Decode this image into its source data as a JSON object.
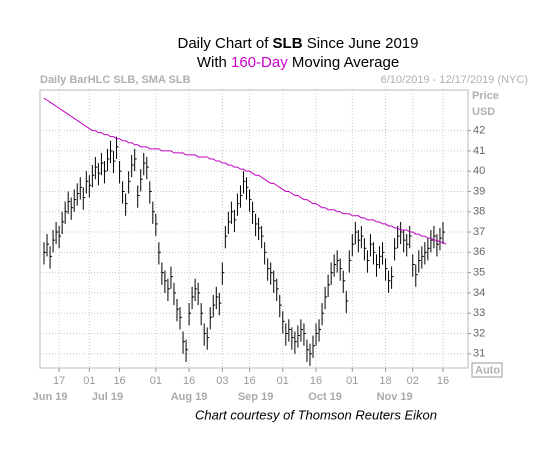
{
  "chart_data": {
    "type": "hlc",
    "title": {
      "prefix": "Daily Chart of",
      "ticker": "SLB",
      "suffix": "Since June 2019"
    },
    "subtitle": {
      "prefix": "With",
      "highlight": "160-Day",
      "suffix": "Moving Average",
      "highlight_color": "#cc00cc"
    },
    "header_left": "Daily BarHLC SLB, SMA SLB",
    "header_right": "6/10/2019 - 12/17/2019 (NYC)",
    "y_axis_labels": [
      "Price",
      "USD"
    ],
    "scale_button": "Auto",
    "footer": "Chart courtesy of Thomson Reuters Eikon",
    "grid": true,
    "ylim": [
      30.3,
      44
    ],
    "yticks": [
      31,
      32,
      33,
      34,
      35,
      36,
      37,
      38,
      39,
      40,
      41,
      42
    ],
    "xlim": [
      0,
      133
    ],
    "xticks": [
      {
        "value": 5,
        "label": "17"
      },
      {
        "value": 15,
        "label": "01"
      },
      {
        "value": 25,
        "label": "16"
      },
      {
        "value": 37,
        "label": "01"
      },
      {
        "value": 48,
        "label": "16"
      },
      {
        "value": 59,
        "label": "03"
      },
      {
        "value": 68,
        "label": "16"
      },
      {
        "value": 79,
        "label": "01"
      },
      {
        "value": 90,
        "label": "16"
      },
      {
        "value": 102,
        "label": "01"
      },
      {
        "value": 113,
        "label": "18"
      },
      {
        "value": 122,
        "label": "02"
      },
      {
        "value": 132,
        "label": "16"
      }
    ],
    "month_labels": [
      {
        "value": 2,
        "label": "Jun 19"
      },
      {
        "value": 21,
        "label": "Jul 19"
      },
      {
        "value": 48,
        "label": "Aug 19"
      },
      {
        "value": 70,
        "label": "Sep 19"
      },
      {
        "value": 93,
        "label": "Oct 19"
      },
      {
        "value": 116,
        "label": "Nov 19"
      }
    ],
    "series": [
      {
        "kind": "hlc",
        "color": "#000000",
        "high": [
          36.5,
          36.9,
          36.3,
          37.1,
          37.5,
          37.3,
          38.0,
          38.5,
          39.0,
          38.7,
          39.1,
          39.4,
          39.7,
          39.2,
          40.0,
          39.8,
          40.3,
          40.7,
          40.4,
          40.9,
          40.5,
          41.1,
          41.5,
          41.0,
          41.7,
          40.5,
          39.5,
          38.9,
          40.0,
          40.8,
          41.1,
          39.3,
          40.1,
          40.9,
          40.7,
          39.5,
          38.5,
          37.9,
          36.5,
          35.5,
          35.1,
          34.7,
          35.3,
          34.5,
          33.7,
          33.3,
          32.1,
          31.7,
          33.5,
          34.3,
          34.7,
          34.5,
          33.5,
          32.5,
          32.3,
          33.3,
          33.9,
          34.3,
          34.0,
          35.5,
          37.3,
          38.0,
          38.5,
          38.1,
          38.9,
          39.3,
          40.0,
          39.7,
          39.1,
          38.5,
          37.9,
          37.7,
          37.3,
          36.5,
          35.7,
          35.5,
          35.1,
          34.7,
          33.9,
          33.1,
          32.5,
          32.7,
          32.3,
          32.1,
          32.4,
          32.7,
          32.5,
          31.7,
          31.5,
          31.9,
          32.5,
          32.7,
          33.5,
          34.3,
          34.9,
          35.5,
          35.9,
          36.1,
          35.7,
          35.1,
          34.1,
          36.1,
          36.9,
          37.5,
          37.1,
          37.3,
          36.7,
          36.1,
          36.9,
          36.5,
          35.9,
          36.3,
          36.5,
          35.7,
          35.1,
          35.3,
          36.7,
          37.3,
          37.5,
          37.1,
          36.9,
          37.3,
          35.9,
          35.4,
          36.1,
          36.3,
          36.5,
          36.7,
          37.1,
          37.3,
          36.9,
          37.2,
          37.5
        ],
        "low": [
          35.4,
          35.8,
          35.2,
          36.0,
          36.4,
          36.2,
          36.9,
          37.4,
          37.9,
          37.6,
          38.0,
          38.3,
          38.6,
          38.1,
          38.9,
          38.7,
          39.2,
          39.6,
          39.3,
          39.8,
          39.4,
          40.0,
          40.4,
          39.9,
          40.6,
          39.4,
          38.4,
          37.8,
          38.9,
          39.7,
          40.0,
          38.2,
          39.0,
          39.8,
          39.6,
          38.4,
          37.4,
          36.8,
          35.4,
          34.4,
          34.0,
          33.6,
          34.2,
          33.4,
          32.6,
          32.2,
          31.0,
          30.6,
          32.4,
          33.2,
          33.6,
          33.4,
          32.4,
          31.4,
          31.2,
          32.2,
          32.8,
          33.2,
          32.9,
          34.4,
          36.2,
          36.9,
          37.4,
          37.0,
          37.8,
          38.2,
          38.9,
          38.6,
          38.0,
          37.4,
          36.8,
          36.6,
          36.2,
          35.4,
          34.6,
          34.4,
          34.0,
          33.6,
          32.8,
          32.0,
          31.4,
          31.6,
          31.2,
          31.0,
          31.3,
          31.6,
          31.4,
          30.6,
          30.4,
          30.8,
          31.4,
          31.6,
          32.4,
          33.2,
          33.8,
          34.4,
          34.8,
          35.0,
          34.6,
          34.0,
          33.0,
          35.0,
          35.8,
          36.4,
          36.0,
          36.2,
          35.6,
          35.0,
          35.8,
          35.4,
          34.8,
          35.2,
          35.4,
          34.6,
          34.0,
          34.2,
          35.6,
          36.2,
          36.4,
          36.0,
          35.8,
          36.2,
          34.8,
          34.3,
          35.0,
          35.2,
          35.4,
          35.6,
          36.0,
          36.2,
          35.8,
          36.1,
          36.4
        ],
        "close": [
          36.0,
          36.4,
          35.8,
          36.6,
          37.0,
          36.8,
          37.5,
          38.0,
          38.5,
          38.2,
          38.6,
          38.9,
          39.2,
          38.7,
          39.5,
          39.3,
          39.8,
          40.2,
          39.9,
          40.4,
          40.0,
          40.6,
          41.0,
          40.5,
          41.2,
          40.0,
          39.0,
          38.4,
          39.5,
          40.3,
          40.6,
          38.8,
          39.6,
          40.4,
          40.2,
          39.0,
          38.0,
          37.4,
          36.0,
          35.0,
          34.6,
          34.2,
          34.8,
          34.0,
          33.2,
          32.8,
          31.6,
          31.2,
          33.0,
          33.8,
          34.2,
          34.0,
          33.0,
          32.0,
          31.8,
          32.8,
          33.4,
          33.8,
          33.5,
          35.0,
          36.8,
          37.5,
          38.0,
          37.6,
          38.4,
          38.8,
          39.5,
          39.2,
          38.6,
          38.0,
          37.4,
          37.2,
          36.8,
          36.0,
          35.2,
          35.0,
          34.6,
          34.2,
          33.4,
          32.6,
          32.0,
          32.2,
          31.8,
          31.6,
          31.9,
          32.2,
          32.0,
          31.2,
          31.0,
          31.4,
          32.0,
          32.2,
          33.0,
          33.8,
          34.4,
          35.0,
          35.4,
          35.6,
          35.2,
          34.6,
          33.6,
          35.6,
          36.4,
          37.0,
          36.6,
          36.8,
          36.2,
          35.6,
          36.4,
          36.0,
          35.4,
          35.8,
          36.0,
          35.2,
          34.6,
          34.8,
          36.2,
          36.8,
          37.0,
          36.6,
          36.4,
          36.8,
          35.4,
          34.9,
          35.6,
          35.8,
          36.0,
          36.2,
          36.6,
          36.8,
          36.4,
          36.7,
          37.0
        ]
      },
      {
        "kind": "line",
        "color": "#c000c0",
        "values": [
          43.6,
          43.5,
          43.4,
          43.3,
          43.2,
          43.1,
          43.0,
          42.9,
          42.8,
          42.7,
          42.6,
          42.5,
          42.4,
          42.3,
          42.2,
          42.1,
          42.0,
          42.0,
          41.9,
          41.9,
          41.8,
          41.8,
          41.7,
          41.7,
          41.6,
          41.6,
          41.5,
          41.5,
          41.4,
          41.4,
          41.3,
          41.3,
          41.2,
          41.2,
          41.2,
          41.1,
          41.1,
          41.1,
          41.1,
          41.0,
          41.0,
          41.0,
          41.0,
          40.9,
          40.9,
          40.9,
          40.9,
          40.8,
          40.8,
          40.8,
          40.8,
          40.7,
          40.7,
          40.7,
          40.7,
          40.6,
          40.6,
          40.5,
          40.5,
          40.4,
          40.4,
          40.3,
          40.3,
          40.2,
          40.2,
          40.1,
          40.1,
          40.0,
          40.0,
          39.9,
          39.8,
          39.8,
          39.7,
          39.6,
          39.5,
          39.4,
          39.4,
          39.3,
          39.2,
          39.1,
          39.0,
          39.0,
          38.9,
          38.8,
          38.8,
          38.7,
          38.6,
          38.6,
          38.5,
          38.4,
          38.4,
          38.3,
          38.2,
          38.2,
          38.1,
          38.1,
          38.1,
          38.0,
          38.0,
          37.9,
          37.9,
          37.9,
          37.8,
          37.8,
          37.8,
          37.7,
          37.7,
          37.6,
          37.6,
          37.6,
          37.5,
          37.5,
          37.4,
          37.4,
          37.3,
          37.3,
          37.2,
          37.2,
          37.1,
          37.1,
          37.1,
          37.0,
          37.0,
          36.9,
          36.9,
          36.8,
          36.8,
          36.7,
          36.7,
          36.6,
          36.6,
          36.5,
          36.5,
          36.4
        ]
      }
    ]
  }
}
